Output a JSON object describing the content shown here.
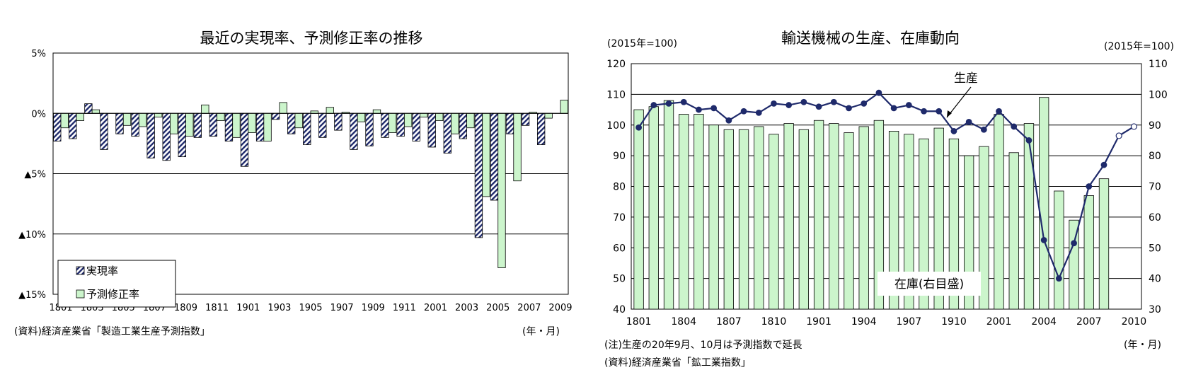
{
  "left": {
    "title": "最近の実現率、予測修正率の推移",
    "source": "(資料)経済産業省「製造工業生産予測指数」",
    "xunit": "(年・月)",
    "chart_data": {
      "type": "bar",
      "ylim": [
        -15,
        5
      ],
      "yticks": [
        5,
        0,
        -5,
        -10,
        -15
      ],
      "ytick_labels": [
        "5%",
        "0%",
        "▲5%",
        "▲10%",
        "▲15%"
      ],
      "categories": [
        "1801",
        "1802",
        "1803",
        "1804",
        "1805",
        "1806",
        "1807",
        "1808",
        "1809",
        "1810",
        "1811",
        "1812",
        "1901",
        "1902",
        "1903",
        "1904",
        "1905",
        "1906",
        "1907",
        "1908",
        "1909",
        "1910",
        "1911",
        "1912",
        "2001",
        "2002",
        "2003",
        "2004",
        "2005",
        "2006",
        "2007",
        "2008",
        "2009"
      ],
      "xtick_labels": [
        "1801",
        "1803",
        "1805",
        "1807",
        "1809",
        "1811",
        "1901",
        "1903",
        "1905",
        "1907",
        "1909",
        "1911",
        "2001",
        "2003",
        "2005",
        "2007",
        "2009"
      ],
      "legend_position": "bottom-left",
      "grid": true,
      "series": [
        {
          "name": "実現率",
          "color": "#1f2a6b",
          "pattern": "hatch",
          "values": [
            -2.3,
            -2.1,
            0.8,
            -3.0,
            -1.7,
            -1.9,
            -3.7,
            -3.9,
            -3.6,
            -2.0,
            -1.9,
            -2.3,
            -4.4,
            -2.3,
            -0.5,
            -1.7,
            -2.6,
            -2.0,
            -1.4,
            -3.0,
            -2.7,
            -2.0,
            -1.9,
            -2.3,
            -2.8,
            -3.3,
            -2.1,
            -10.3,
            -7.2,
            -1.7,
            -1.0,
            -2.6,
            null
          ]
        },
        {
          "name": "予測修正率",
          "color": "#ccf5cc",
          "values": [
            -1.2,
            -0.6,
            0.3,
            null,
            -1.0,
            -1.1,
            -0.3,
            -1.7,
            -1.9,
            0.7,
            -0.6,
            -2.0,
            -1.6,
            -2.3,
            0.9,
            -1.2,
            0.2,
            0.5,
            0.1,
            -0.7,
            0.3,
            -1.6,
            -1.1,
            -0.3,
            -0.6,
            -1.7,
            -1.2,
            -6.9,
            -12.8,
            -5.6,
            0.1,
            -0.4,
            1.1
          ]
        }
      ]
    }
  },
  "right": {
    "title": "輸送機械の生産、在庫動向",
    "unit_left": "(2015年=100)",
    "unit_right": "(2015年=100)",
    "note1": "(注)生産の20年9月、10月は予測指数で延長",
    "note2": "(資料)経済産業省「鉱工業指数」",
    "xunit": "(年・月)",
    "chart_data": {
      "type": "bar",
      "categories": [
        "1801",
        "1802",
        "1803",
        "1804",
        "1805",
        "1806",
        "1807",
        "1808",
        "1809",
        "1810",
        "1811",
        "1812",
        "1901",
        "1902",
        "1903",
        "1904",
        "1905",
        "1906",
        "1907",
        "1908",
        "1909",
        "1910",
        "1911",
        "1912",
        "2001",
        "2002",
        "2003",
        "2004",
        "2005",
        "2006",
        "2007",
        "2008",
        "2009",
        "2010"
      ],
      "xtick_labels": [
        "1801",
        "1804",
        "1807",
        "1810",
        "1901",
        "1904",
        "1907",
        "1910",
        "2001",
        "2004",
        "2007",
        "2010"
      ],
      "ylim_left": [
        40,
        120
      ],
      "yticks_left": [
        40,
        50,
        60,
        70,
        80,
        90,
        100,
        110,
        120
      ],
      "ylim_right": [
        30,
        110
      ],
      "yticks_right": [
        30,
        40,
        50,
        60,
        70,
        80,
        90,
        100,
        110
      ],
      "grid": true,
      "series": [
        {
          "name": "在庫(右目盛)",
          "kind": "bar",
          "axis": "right",
          "color": "#ccf5cc",
          "values": [
            95,
            96,
            98,
            93.5,
            93.5,
            90,
            88.5,
            88.5,
            89.5,
            87,
            90.5,
            88.5,
            91.5,
            90.5,
            87.5,
            89.5,
            91.5,
            88,
            87,
            85.5,
            89,
            85.5,
            80,
            83,
            93.5,
            81,
            90.5,
            99,
            68.5,
            59,
            67,
            72.5,
            null,
            null
          ]
        },
        {
          "name": "生産",
          "kind": "line",
          "axis": "left",
          "color": "#1f2a6b",
          "values": [
            99.2,
            106.5,
            107,
            107.5,
            105,
            105.5,
            101.5,
            104.5,
            104,
            107,
            106.5,
            107.5,
            106,
            107.5,
            105.5,
            107,
            110.5,
            105.5,
            106.5,
            104.5,
            104.5,
            98,
            101,
            98.5,
            104.5,
            99.5,
            95,
            62.5,
            50,
            61.5,
            80,
            87,
            96.5,
            99.5
          ],
          "forecast_from_index": 32
        }
      ],
      "annotations": [
        {
          "text": "生産",
          "target": "line"
        },
        {
          "text": "在庫(右目盛)",
          "target": "bars"
        }
      ]
    }
  }
}
